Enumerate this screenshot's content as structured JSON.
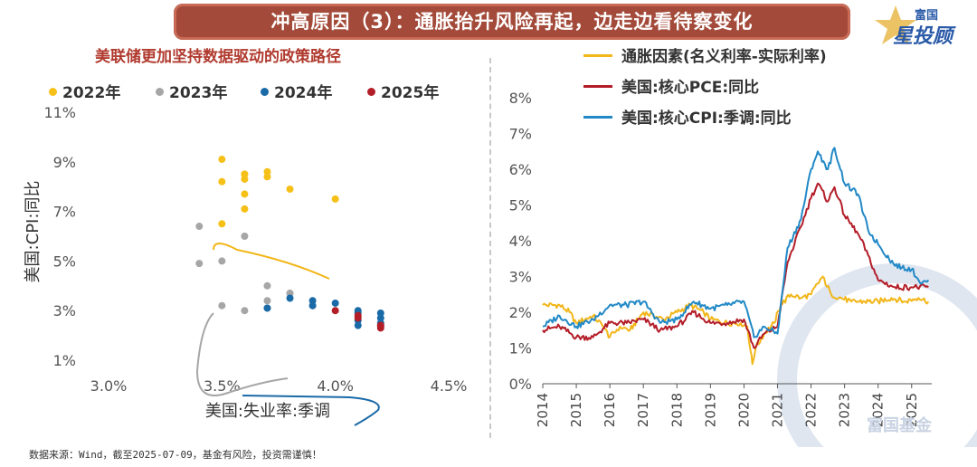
{
  "header": {
    "title": "冲高原因（3）：通胀抬升风险再起，边走边看待察变化",
    "logo_top": "富国",
    "logo_main": "星投顾"
  },
  "footer": {
    "source": "数据来源：Wind，截至2025-07-09，基金有风险，投资需谨慎！"
  },
  "watermark": "富国基金",
  "colors": {
    "y2022": "#f5c018",
    "y2023": "#a6a6a6",
    "y2024": "#1a6aa8",
    "y2025": "#b31d28",
    "inflation": "#f2b619",
    "pce": "#b31d28",
    "cpi": "#2289c6"
  },
  "chart_data": [
    {
      "type": "scatter",
      "title": "美联储更加坚持数据驱动的政策路径",
      "xlabel": "美国:失业率:季调",
      "ylabel": "美国:CPI:同比",
      "xlim": [
        3.0,
        4.5
      ],
      "ylim": [
        1,
        11
      ],
      "xticks": [
        "3.0%",
        "3.5%",
        "4.0%",
        "4.5%"
      ],
      "yticks": [
        "1%",
        "3%",
        "5%",
        "7%",
        "9%",
        "11%"
      ],
      "grid": false,
      "legend": "top",
      "series": [
        {
          "name": "2022年",
          "points": [
            [
              4.0,
              7.5
            ],
            [
              3.8,
              7.9
            ],
            [
              3.6,
              8.5
            ],
            [
              3.6,
              8.3
            ],
            [
              3.7,
              8.6
            ],
            [
              3.7,
              8.4
            ],
            [
              3.5,
              9.1
            ],
            [
              3.6,
              8.5
            ],
            [
              3.5,
              8.2
            ],
            [
              3.6,
              7.7
            ],
            [
              3.6,
              7.1
            ],
            [
              3.5,
              6.5
            ]
          ]
        },
        {
          "name": "2023年",
          "points": [
            [
              3.4,
              6.4
            ],
            [
              3.6,
              6.0
            ],
            [
              3.5,
              5.0
            ],
            [
              3.4,
              4.9
            ],
            [
              3.7,
              4.0
            ],
            [
              3.6,
              3.0
            ],
            [
              3.5,
              3.2
            ],
            [
              3.8,
              3.7
            ],
            [
              3.8,
              3.7
            ],
            [
              3.9,
              3.2
            ],
            [
              3.7,
              3.1
            ],
            [
              3.7,
              3.4
            ]
          ]
        },
        {
          "name": "2024年",
          "points": [
            [
              3.7,
              3.1
            ],
            [
              3.9,
              3.2
            ],
            [
              3.8,
              3.5
            ],
            [
              3.9,
              3.4
            ],
            [
              4.0,
              3.3
            ],
            [
              4.1,
              3.0
            ],
            [
              4.2,
              2.9
            ],
            [
              4.2,
              2.5
            ],
            [
              4.1,
              2.4
            ],
            [
              4.1,
              2.6
            ],
            [
              4.2,
              2.7
            ],
            [
              4.1,
              2.9
            ]
          ]
        },
        {
          "name": "2025年",
          "points": [
            [
              4.0,
              3.0
            ],
            [
              4.1,
              2.8
            ],
            [
              4.2,
              2.4
            ],
            [
              4.2,
              2.3
            ],
            [
              4.2,
              2.4
            ],
            [
              4.1,
              2.7
            ]
          ]
        }
      ]
    },
    {
      "type": "line",
      "title": "",
      "xlim": [
        2014,
        2025.6
      ],
      "ylim": [
        0,
        8
      ],
      "xticks": [
        "2014",
        "2015",
        "2016",
        "2017",
        "2018",
        "2019",
        "2020",
        "2021",
        "2022",
        "2023",
        "2024",
        "2025"
      ],
      "yticks": [
        "0%",
        "1%",
        "2%",
        "3%",
        "4%",
        "5%",
        "6%",
        "7%",
        "8%"
      ],
      "grid": false,
      "legend": "top",
      "series": [
        {
          "name": "通胀因素(名义利率-实际利率)",
          "points": [
            [
              2014.0,
              2.2
            ],
            [
              2014.5,
              2.2
            ],
            [
              2014.8,
              2.0
            ],
            [
              2015.0,
              1.7
            ],
            [
              2015.5,
              1.9
            ],
            [
              2015.8,
              1.6
            ],
            [
              2016.0,
              1.3
            ],
            [
              2016.3,
              1.6
            ],
            [
              2016.6,
              1.5
            ],
            [
              2017.0,
              2.0
            ],
            [
              2017.3,
              1.9
            ],
            [
              2017.6,
              1.8
            ],
            [
              2018.0,
              2.0
            ],
            [
              2018.4,
              2.2
            ],
            [
              2018.8,
              2.0
            ],
            [
              2019.0,
              1.8
            ],
            [
              2019.5,
              1.7
            ],
            [
              2019.9,
              1.7
            ],
            [
              2020.1,
              1.6
            ],
            [
              2020.2,
              0.9
            ],
            [
              2020.25,
              0.55
            ],
            [
              2020.35,
              1.0
            ],
            [
              2020.6,
              1.4
            ],
            [
              2020.9,
              1.7
            ],
            [
              2021.1,
              2.2
            ],
            [
              2021.4,
              2.5
            ],
            [
              2021.7,
              2.4
            ],
            [
              2022.0,
              2.5
            ],
            [
              2022.2,
              2.8
            ],
            [
              2022.35,
              3.0
            ],
            [
              2022.6,
              2.5
            ],
            [
              2022.9,
              2.4
            ],
            [
              2023.2,
              2.3
            ],
            [
              2023.6,
              2.3
            ],
            [
              2024.0,
              2.3
            ],
            [
              2024.4,
              2.4
            ],
            [
              2024.8,
              2.3
            ],
            [
              2025.2,
              2.4
            ],
            [
              2025.5,
              2.3
            ]
          ]
        },
        {
          "name": "美国:核心PCE:同比",
          "points": [
            [
              2014.0,
              1.5
            ],
            [
              2014.5,
              1.6
            ],
            [
              2015.0,
              1.3
            ],
            [
              2015.5,
              1.3
            ],
            [
              2016.0,
              1.7
            ],
            [
              2016.5,
              1.7
            ],
            [
              2017.0,
              1.8
            ],
            [
              2017.5,
              1.5
            ],
            [
              2018.0,
              1.6
            ],
            [
              2018.5,
              2.0
            ],
            [
              2019.0,
              1.7
            ],
            [
              2019.5,
              1.7
            ],
            [
              2020.0,
              1.8
            ],
            [
              2020.3,
              1.0
            ],
            [
              2020.6,
              1.4
            ],
            [
              2021.0,
              1.6
            ],
            [
              2021.3,
              3.4
            ],
            [
              2021.7,
              4.4
            ],
            [
              2022.0,
              5.2
            ],
            [
              2022.2,
              5.6
            ],
            [
              2022.5,
              5.1
            ],
            [
              2022.7,
              5.5
            ],
            [
              2023.0,
              4.7
            ],
            [
              2023.4,
              4.2
            ],
            [
              2023.7,
              3.6
            ],
            [
              2024.0,
              2.9
            ],
            [
              2024.5,
              2.7
            ],
            [
              2025.0,
              2.7
            ],
            [
              2025.5,
              2.7
            ]
          ]
        },
        {
          "name": "美国:核心CPI:季调:同比",
          "points": [
            [
              2014.0,
              1.6
            ],
            [
              2014.5,
              1.9
            ],
            [
              2015.0,
              1.6
            ],
            [
              2015.5,
              1.8
            ],
            [
              2016.0,
              2.2
            ],
            [
              2016.5,
              2.2
            ],
            [
              2017.0,
              2.3
            ],
            [
              2017.5,
              1.7
            ],
            [
              2018.0,
              1.8
            ],
            [
              2018.5,
              2.3
            ],
            [
              2019.0,
              2.1
            ],
            [
              2019.5,
              2.2
            ],
            [
              2020.0,
              2.3
            ],
            [
              2020.3,
              1.3
            ],
            [
              2020.6,
              1.6
            ],
            [
              2021.0,
              1.4
            ],
            [
              2021.3,
              3.8
            ],
            [
              2021.7,
              4.6
            ],
            [
              2022.0,
              6.0
            ],
            [
              2022.2,
              6.5
            ],
            [
              2022.5,
              6.0
            ],
            [
              2022.7,
              6.6
            ],
            [
              2023.0,
              5.6
            ],
            [
              2023.4,
              5.3
            ],
            [
              2023.7,
              4.3
            ],
            [
              2024.0,
              3.9
            ],
            [
              2024.5,
              3.3
            ],
            [
              2025.0,
              3.2
            ],
            [
              2025.3,
              2.8
            ],
            [
              2025.5,
              2.9
            ]
          ]
        }
      ]
    }
  ]
}
